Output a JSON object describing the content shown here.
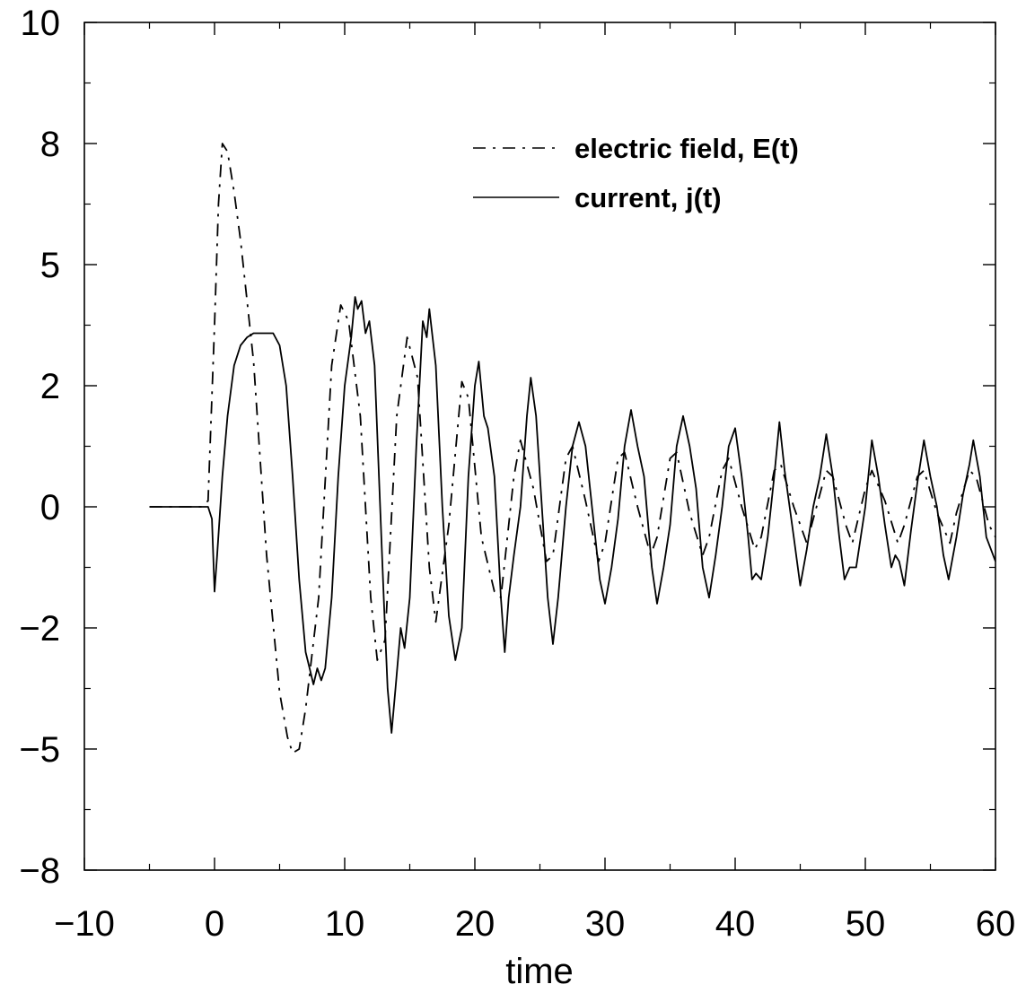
{
  "chart_data": {
    "type": "line",
    "title": "",
    "xlabel": "time",
    "ylabel": "",
    "xlim": [
      -10,
      60
    ],
    "ylim": [
      -8,
      10
    ],
    "x_ticks": [
      -10,
      0,
      10,
      20,
      30,
      40,
      50,
      60
    ],
    "x_tick_labels": [
      "−10",
      "0",
      "10",
      "20",
      "30",
      "40",
      "50",
      "60"
    ],
    "y_ticks": [
      -8,
      -5,
      -2,
      0,
      2,
      5,
      8,
      10
    ],
    "y_tick_labels": [
      "−8",
      "−5",
      "−2",
      "0",
      "2",
      "5",
      "8",
      "10"
    ],
    "grid": false,
    "legend_position": "top-right",
    "colors": {
      "line": "#000000",
      "axis": "#000000"
    },
    "series": [
      {
        "name": "electric field, E(t)",
        "style": "dash-dot",
        "points": [
          [
            -5,
            0
          ],
          [
            -1,
            0
          ],
          [
            -0.5,
            0.1
          ],
          [
            0,
            3.5
          ],
          [
            0.3,
            6.5
          ],
          [
            0.6,
            8.0
          ],
          [
            1.0,
            7.8
          ],
          [
            1.5,
            6.8
          ],
          [
            2.0,
            5.6
          ],
          [
            3.0,
            2.6
          ],
          [
            4.0,
            -0.8
          ],
          [
            5.0,
            -3.6
          ],
          [
            5.6,
            -4.7
          ],
          [
            6.0,
            -5.1
          ],
          [
            6.5,
            -5.0
          ],
          [
            7.0,
            -4.0
          ],
          [
            8.0,
            -1.5
          ],
          [
            9.0,
            2.5
          ],
          [
            9.7,
            4.0
          ],
          [
            10.3,
            3.6
          ],
          [
            11.2,
            1.5
          ],
          [
            12.0,
            -1.5
          ],
          [
            12.5,
            -2.8
          ],
          [
            13.1,
            -2.3
          ],
          [
            14.0,
            1.5
          ],
          [
            14.8,
            3.2
          ],
          [
            15.6,
            2.2
          ],
          [
            16.5,
            -1.0
          ],
          [
            17.0,
            -1.9
          ],
          [
            18.0,
            -0.3
          ],
          [
            19.0,
            2.1
          ],
          [
            19.5,
            1.8
          ],
          [
            20.5,
            -0.5
          ],
          [
            21.5,
            -1.4
          ],
          [
            22.0,
            -1.5
          ],
          [
            23.0,
            0.5
          ],
          [
            23.5,
            1.1
          ],
          [
            24.5,
            0.3
          ],
          [
            25.5,
            -0.9
          ],
          [
            26.0,
            -0.8
          ],
          [
            27.0,
            0.8
          ],
          [
            27.5,
            1.0
          ],
          [
            28.5,
            0.1
          ],
          [
            29.5,
            -0.9
          ],
          [
            30.0,
            -0.6
          ],
          [
            31.0,
            0.8
          ],
          [
            31.5,
            0.9
          ],
          [
            32.5,
            0.0
          ],
          [
            33.5,
            -0.8
          ],
          [
            34.0,
            -0.5
          ],
          [
            35.0,
            0.8
          ],
          [
            35.5,
            0.9
          ],
          [
            36.5,
            -0.1
          ],
          [
            37.5,
            -0.8
          ],
          [
            38.0,
            -0.5
          ],
          [
            39.0,
            0.6
          ],
          [
            39.5,
            0.8
          ],
          [
            40.5,
            0.0
          ],
          [
            41.5,
            -0.7
          ],
          [
            42.0,
            -0.5
          ],
          [
            43.0,
            0.6
          ],
          [
            43.5,
            0.7
          ],
          [
            44.5,
            0.0
          ],
          [
            45.5,
            -0.6
          ],
          [
            46.0,
            -0.2
          ],
          [
            47.0,
            0.6
          ],
          [
            47.5,
            0.5
          ],
          [
            48.5,
            -0.3
          ],
          [
            49.0,
            -0.6
          ],
          [
            50.0,
            0.3
          ],
          [
            50.5,
            0.6
          ],
          [
            51.5,
            0.1
          ],
          [
            52.5,
            -0.6
          ],
          [
            53.0,
            -0.3
          ],
          [
            54.0,
            0.5
          ],
          [
            54.5,
            0.6
          ],
          [
            55.5,
            -0.1
          ],
          [
            56.5,
            -0.6
          ],
          [
            57.0,
            -0.1
          ],
          [
            58.0,
            0.6
          ],
          [
            58.5,
            0.5
          ],
          [
            59.5,
            -0.3
          ],
          [
            60.0,
            -0.5
          ]
        ]
      },
      {
        "name": "current, j(t)",
        "style": "solid",
        "points": [
          [
            -5,
            0
          ],
          [
            -1,
            0
          ],
          [
            -0.5,
            0
          ],
          [
            -0.2,
            -0.2
          ],
          [
            0,
            -1.4
          ],
          [
            0.2,
            -0.8
          ],
          [
            0.6,
            0.5
          ],
          [
            1.0,
            1.5
          ],
          [
            1.5,
            2.5
          ],
          [
            2.0,
            3.0
          ],
          [
            2.5,
            3.2
          ],
          [
            3.0,
            3.3
          ],
          [
            4.0,
            3.3
          ],
          [
            4.5,
            3.3
          ],
          [
            5.0,
            3.0
          ],
          [
            5.5,
            2.0
          ],
          [
            6.0,
            0.5
          ],
          [
            6.5,
            -1.2
          ],
          [
            7.0,
            -2.6
          ],
          [
            7.3,
            -3.0
          ],
          [
            7.6,
            -3.4
          ],
          [
            7.9,
            -3.0
          ],
          [
            8.2,
            -3.3
          ],
          [
            8.5,
            -3.0
          ],
          [
            9.0,
            -1.5
          ],
          [
            9.5,
            0.5
          ],
          [
            10.0,
            2.0
          ],
          [
            10.5,
            3.2
          ],
          [
            10.8,
            4.2
          ],
          [
            11.0,
            3.9
          ],
          [
            11.3,
            4.1
          ],
          [
            11.6,
            3.3
          ],
          [
            11.9,
            3.6
          ],
          [
            12.3,
            2.5
          ],
          [
            13.0,
            -1.5
          ],
          [
            13.3,
            -3.5
          ],
          [
            13.6,
            -4.6
          ],
          [
            13.9,
            -3.5
          ],
          [
            14.3,
            -2.0
          ],
          [
            14.6,
            -2.5
          ],
          [
            15.0,
            -1.5
          ],
          [
            15.5,
            1.0
          ],
          [
            16.0,
            3.6
          ],
          [
            16.3,
            3.2
          ],
          [
            16.5,
            3.9
          ],
          [
            17.0,
            2.5
          ],
          [
            17.5,
            0.0
          ],
          [
            18.0,
            -1.8
          ],
          [
            18.5,
            -2.8
          ],
          [
            19.0,
            -2.0
          ],
          [
            19.5,
            0.5
          ],
          [
            20.0,
            2.0
          ],
          [
            20.3,
            2.6
          ],
          [
            20.7,
            1.5
          ],
          [
            21.0,
            1.3
          ],
          [
            21.5,
            0.5
          ],
          [
            22.0,
            -1.5
          ],
          [
            22.3,
            -2.6
          ],
          [
            22.6,
            -1.5
          ],
          [
            23.0,
            -0.8
          ],
          [
            23.5,
            0.0
          ],
          [
            24.0,
            1.5
          ],
          [
            24.3,
            2.2
          ],
          [
            24.7,
            1.5
          ],
          [
            25.0,
            0.5
          ],
          [
            25.6,
            -1.5
          ],
          [
            26.0,
            -2.4
          ],
          [
            26.4,
            -1.5
          ],
          [
            27.0,
            0.0
          ],
          [
            27.5,
            1.0
          ],
          [
            28.0,
            1.4
          ],
          [
            28.5,
            1.0
          ],
          [
            29.0,
            0.0
          ],
          [
            29.6,
            -1.2
          ],
          [
            30.0,
            -1.6
          ],
          [
            30.5,
            -1.0
          ],
          [
            31.0,
            -0.2
          ],
          [
            31.5,
            1.0
          ],
          [
            32.0,
            1.6
          ],
          [
            32.5,
            1.0
          ],
          [
            33.0,
            0.5
          ],
          [
            33.6,
            -1.0
          ],
          [
            34.0,
            -1.6
          ],
          [
            34.5,
            -1.0
          ],
          [
            35.0,
            -0.3
          ],
          [
            35.5,
            1.0
          ],
          [
            36.0,
            1.5
          ],
          [
            36.5,
            1.0
          ],
          [
            37.0,
            0.3
          ],
          [
            37.5,
            -1.0
          ],
          [
            38.0,
            -1.5
          ],
          [
            38.5,
            -0.8
          ],
          [
            39.0,
            0.0
          ],
          [
            39.5,
            1.0
          ],
          [
            40.0,
            1.3
          ],
          [
            40.5,
            0.5
          ],
          [
            41.0,
            -0.5
          ],
          [
            41.3,
            -1.2
          ],
          [
            41.6,
            -1.1
          ],
          [
            42.0,
            -1.2
          ],
          [
            42.5,
            -0.5
          ],
          [
            43.0,
            0.5
          ],
          [
            43.4,
            1.4
          ],
          [
            43.8,
            0.6
          ],
          [
            44.5,
            -0.5
          ],
          [
            45.0,
            -1.3
          ],
          [
            45.5,
            -0.7
          ],
          [
            46.0,
            0.0
          ],
          [
            46.5,
            0.5
          ],
          [
            47.0,
            1.2
          ],
          [
            47.5,
            0.5
          ],
          [
            48.0,
            -0.5
          ],
          [
            48.4,
            -1.2
          ],
          [
            48.8,
            -1.0
          ],
          [
            49.3,
            -1.0
          ],
          [
            50.0,
            0.0
          ],
          [
            50.5,
            1.1
          ],
          [
            51.0,
            0.5
          ],
          [
            51.5,
            -0.3
          ],
          [
            52.0,
            -1.0
          ],
          [
            52.3,
            -0.8
          ],
          [
            52.6,
            -0.9
          ],
          [
            53.0,
            -1.3
          ],
          [
            53.5,
            -0.4
          ],
          [
            54.0,
            0.4
          ],
          [
            54.5,
            1.1
          ],
          [
            55.0,
            0.5
          ],
          [
            55.5,
            0.0
          ],
          [
            56.0,
            -0.8
          ],
          [
            56.4,
            -1.2
          ],
          [
            57.0,
            -0.5
          ],
          [
            57.5,
            0.2
          ],
          [
            58.0,
            0.7
          ],
          [
            58.3,
            1.1
          ],
          [
            58.8,
            0.5
          ],
          [
            59.3,
            -0.5
          ],
          [
            60.0,
            -0.9
          ]
        ]
      }
    ]
  }
}
